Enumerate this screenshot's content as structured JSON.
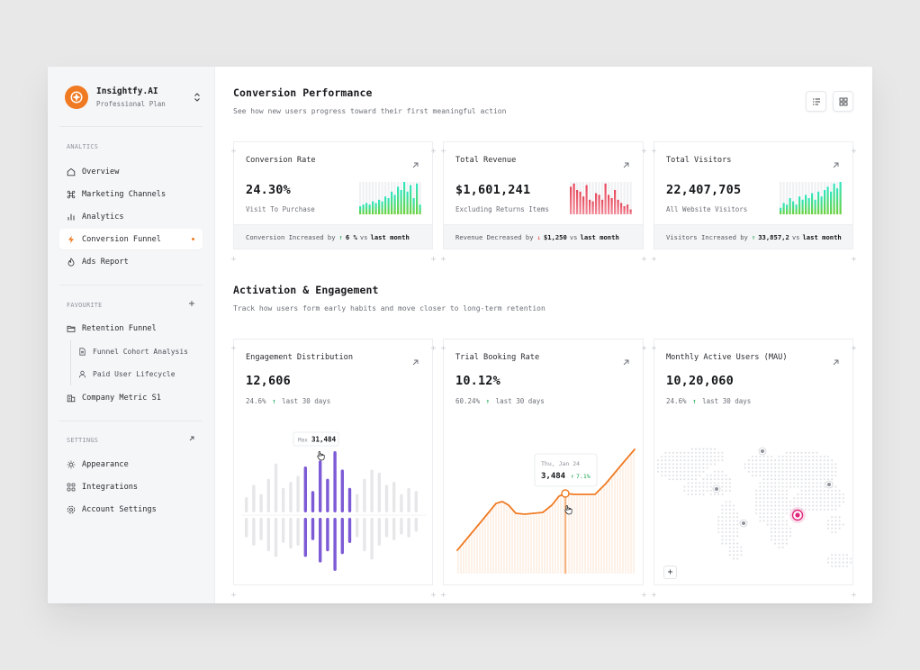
{
  "brand": {
    "name": "Insightfy.AI",
    "plan": "Professional Plan"
  },
  "sidebar": {
    "analytics_label": "ANALTICS",
    "analytics": [
      {
        "label": "Overview",
        "icon": "home-icon",
        "active": false
      },
      {
        "label": "Marketing Channels",
        "icon": "command-icon",
        "active": false
      },
      {
        "label": "Analytics",
        "icon": "bar-chart-icon",
        "active": false
      },
      {
        "label": "Conversion Funnel",
        "icon": "lightning-icon",
        "active": true
      },
      {
        "label": "Ads Report",
        "icon": "flame-icon",
        "active": false
      }
    ],
    "favourite_label": "FAVOURITE",
    "favourites": {
      "folder": "Retention Funnel",
      "children": [
        "Funnel Cohort Analysis",
        "Paid User Lifecycle"
      ],
      "other": "Company Metric S1"
    },
    "settings_label": "SETTINGS",
    "settings": [
      {
        "label": "Appearance",
        "icon": "sun-icon"
      },
      {
        "label": "Integrations",
        "icon": "grid-icon"
      },
      {
        "label": "Account Settings",
        "icon": "gear-icon"
      }
    ]
  },
  "conversion": {
    "title": "Conversion Performance",
    "subtitle": "See how new users progress toward their first meaningful action",
    "cards": [
      {
        "title": "Conversion Rate",
        "value": "24.30%",
        "sub": "Visit To Purchase",
        "foot_prefix": "Conversion Increased by",
        "foot_delta": "6 %",
        "foot_vs": "vs",
        "foot_period": "last month",
        "trend": "up",
        "color_from": "#2ee6c3",
        "color_to": "#6bd13a",
        "bars": [
          0.25,
          0.3,
          0.35,
          0.3,
          0.4,
          0.35,
          0.45,
          0.4,
          0.55,
          0.5,
          0.7,
          0.6,
          0.85,
          0.75,
          1.0,
          0.7,
          0.9,
          0.5,
          0.95,
          0.3
        ]
      },
      {
        "title": "Total Revenue",
        "value": "$1,601,241",
        "sub": "Excluding Returns Items",
        "foot_prefix": "Revenue Decreased by",
        "foot_delta": "$1,250",
        "foot_vs": "vs",
        "foot_period": "last month",
        "trend": "down",
        "color_from": "#e5475a",
        "color_to": "#f28b9a",
        "bars": [
          0.85,
          0.95,
          0.75,
          0.7,
          0.55,
          0.9,
          0.45,
          0.4,
          0.65,
          0.6,
          0.45,
          0.95,
          0.6,
          0.5,
          0.75,
          0.45,
          0.35,
          0.25,
          0.3,
          0.15
        ]
      },
      {
        "title": "Total Visitors",
        "value": "22,407,705",
        "sub": "All Website Visitors",
        "foot_prefix": "Visitors Increased by",
        "foot_delta": "33,857,2",
        "foot_vs": "vs",
        "foot_period": "last month",
        "trend": "up",
        "color_from": "#2ee6c3",
        "color_to": "#6bd13a",
        "bars": [
          0.2,
          0.35,
          0.3,
          0.5,
          0.4,
          0.3,
          0.55,
          0.45,
          0.6,
          0.5,
          0.65,
          0.45,
          0.7,
          0.55,
          0.75,
          0.85,
          0.7,
          0.95,
          0.8,
          1.0
        ]
      }
    ]
  },
  "activation": {
    "title": "Activation & Engagement",
    "subtitle": "Track how users form early habits and move closer to long-term retention",
    "engagement": {
      "title": "Engagement Distribution",
      "value": "12,606",
      "pct": "24.6%",
      "period": "last 30 days",
      "tooltip_label": "Max",
      "tooltip_value": "31,484",
      "highlight_color": "#7d5bd6",
      "muted_color": "#e7e7ea",
      "up": [
        0.25,
        0.45,
        0.3,
        0.55,
        0.8,
        0.4,
        0.5,
        0.6,
        0.75,
        0.35,
        0.85,
        0.55,
        1.0,
        0.7,
        0.4,
        0.3,
        0.55,
        0.7,
        0.65,
        0.45,
        0.5,
        0.3,
        0.4,
        0.35
      ],
      "down": [
        0.35,
        0.5,
        0.4,
        0.6,
        0.7,
        0.45,
        0.55,
        0.5,
        0.7,
        0.4,
        0.8,
        0.6,
        0.95,
        0.65,
        0.45,
        0.35,
        0.6,
        0.75,
        0.5,
        0.35,
        0.4,
        0.3,
        0.35,
        0.25
      ],
      "highlight": [
        8,
        9,
        10,
        11,
        12,
        13,
        14
      ]
    },
    "trial": {
      "title": "Trial Booking Rate",
      "value": "10.12%",
      "pct": "60.24%",
      "period": "last 30 days",
      "tooltip_date": "Thu, Jan 24",
      "tooltip_value": "3,484",
      "tooltip_delta": "7.1%",
      "line_color": "#f07a22"
    },
    "mau": {
      "title": "Monthly Active Users (MAU)",
      "value": "10,20,060",
      "pct": "24.6%",
      "period": "last 30 days",
      "zoom_label": "+",
      "dot_color": "#dfe1e5",
      "pin_color": "#e0267a"
    }
  }
}
